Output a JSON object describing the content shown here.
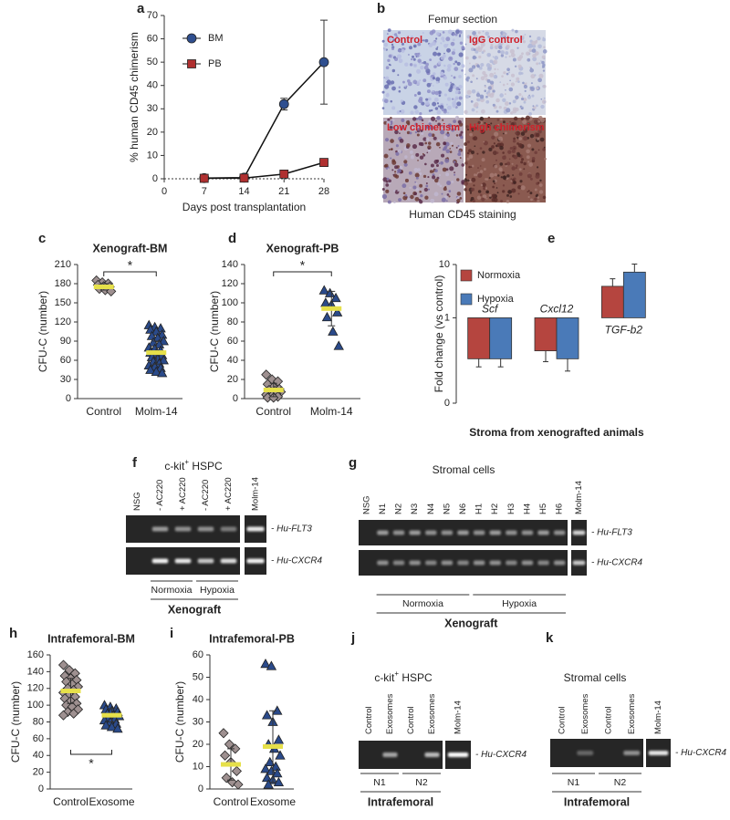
{
  "chart_data": [
    {
      "type": "line",
      "panel": "a",
      "ylabel": "% human CD45 chimerism",
      "xlabel": "Days post transplantation",
      "x": [
        7,
        14,
        21,
        28
      ],
      "xlim": [
        0,
        28
      ],
      "xticks": [
        0,
        7,
        14,
        21,
        28
      ],
      "ylim": [
        0,
        70
      ],
      "yticks": [
        0,
        10,
        20,
        30,
        40,
        50,
        60,
        70
      ],
      "series": [
        {
          "name": "BM",
          "color": "#2f4f8f",
          "marker": "circle",
          "values": [
            0.3,
            0.5,
            32,
            50
          ],
          "errors": [
            0.2,
            0.3,
            2.5,
            18
          ]
        },
        {
          "name": "PB",
          "color": "#b03030",
          "marker": "square",
          "values": [
            0.2,
            0.3,
            2,
            7
          ],
          "errors": [
            0.1,
            0.2,
            0.8,
            1.5
          ]
        }
      ]
    },
    {
      "type": "strip",
      "panel": "c",
      "title": "Xenograft-BM",
      "ylabel": "CFU-C (number)",
      "categories": [
        "Control",
        "Molm-14"
      ],
      "ylim": [
        0,
        210
      ],
      "yticks": [
        0,
        30,
        60,
        90,
        120,
        150,
        180,
        210
      ],
      "mean_color": "#e6e04a",
      "annotation": "*",
      "annotation_position": "top",
      "groups": [
        {
          "marker": "diamond",
          "color": "#9e9090",
          "values": [
            185,
            182,
            180,
            178,
            176,
            175,
            172,
            170,
            168
          ],
          "mean": 175,
          "error": 5
        },
        {
          "marker": "triangle",
          "color": "#2a4a8a",
          "values": [
            115,
            112,
            110,
            108,
            105,
            100,
            98,
            95,
            90,
            88,
            85,
            80,
            78,
            75,
            72,
            70,
            68,
            65,
            62,
            60,
            58,
            55,
            52,
            50,
            48,
            45,
            42,
            40
          ],
          "mean": 72,
          "error": 18
        }
      ]
    },
    {
      "type": "strip",
      "panel": "d",
      "title": "Xenograft-PB",
      "ylabel": "CFU-C (number)",
      "categories": [
        "Control",
        "Molm-14"
      ],
      "ylim": [
        0,
        140
      ],
      "yticks": [
        0,
        20,
        40,
        60,
        80,
        100,
        120,
        140
      ],
      "mean_color": "#e6e04a",
      "annotation": "*",
      "annotation_position": "top",
      "groups": [
        {
          "marker": "diamond",
          "color": "#9e9090",
          "values": [
            25,
            20,
            18,
            15,
            12,
            10,
            9,
            8,
            7,
            6,
            5,
            4,
            3,
            2,
            1,
            1
          ],
          "mean": 9,
          "error": 7
        },
        {
          "marker": "triangle",
          "color": "#2a4a8a",
          "values": [
            113,
            110,
            105,
            100,
            98,
            90,
            85,
            70,
            55
          ],
          "mean": 94,
          "error": 18
        }
      ]
    },
    {
      "type": "bar",
      "panel": "e",
      "ylabel": "Fold change (vs control)",
      "xlabel": "Stroma from xenografted animals",
      "log": true,
      "categories": [
        "Scf",
        "Cxcl12",
        "TGF-b2"
      ],
      "ylim": [
        0.025,
        10
      ],
      "yticks": [
        {
          "value": 0.025,
          "label": "0"
        },
        1,
        10
      ],
      "bar_base": 1,
      "series": [
        {
          "name": "Normoxia",
          "color": "#b5453f",
          "values": [
            0.17,
            0.24,
            3.9
          ],
          "errors": [
            0.05,
            0.09,
            1.5
          ]
        },
        {
          "name": "Hypoxia",
          "color": "#4a7ab8",
          "values": [
            0.17,
            0.17,
            7.2
          ],
          "errors": [
            0.05,
            0.07,
            3
          ]
        }
      ]
    },
    {
      "type": "strip",
      "panel": "h",
      "title": "Intrafemoral-BM",
      "ylabel": "CFU-C (number)",
      "categories": [
        "Control",
        "Exosome"
      ],
      "ylim": [
        0,
        160
      ],
      "yticks": [
        0,
        20,
        40,
        60,
        80,
        100,
        120,
        140,
        160
      ],
      "mean_color": "#e6e04a",
      "annotation": "*",
      "annotation_position": "bottom",
      "groups": [
        {
          "marker": "diamond",
          "color": "#9e9090",
          "values": [
            148,
            142,
            138,
            135,
            132,
            130,
            128,
            125,
            122,
            120,
            118,
            115,
            112,
            110,
            108,
            105,
            102,
            100,
            98,
            95,
            92,
            90,
            88
          ],
          "mean": 117,
          "error": 15
        },
        {
          "marker": "triangle",
          "color": "#2a4a8a",
          "values": [
            100,
            98,
            96,
            95,
            93,
            92,
            90,
            88,
            87,
            85,
            83,
            82,
            80,
            78,
            76,
            74,
            72
          ],
          "mean": 88,
          "error": 8
        }
      ]
    },
    {
      "type": "strip",
      "panel": "i",
      "title": "Intrafemoral-PB",
      "ylabel": "CFU-C (number)",
      "categories": [
        "Control",
        "Exosome"
      ],
      "ylim": [
        0,
        60
      ],
      "yticks": [
        0,
        10,
        20,
        30,
        40,
        50,
        60
      ],
      "mean_color": "#e6e04a",
      "groups": [
        {
          "marker": "diamond",
          "color": "#9e9090",
          "values": [
            25,
            20,
            18,
            15,
            12,
            8,
            5,
            3,
            2
          ],
          "mean": 11,
          "error": 7
        },
        {
          "marker": "triangle",
          "color": "#2a4a8a",
          "values": [
            56,
            55,
            35,
            33,
            30,
            22,
            20,
            18,
            15,
            12,
            10,
            9,
            8,
            7,
            5,
            4,
            3,
            2
          ],
          "mean": 19,
          "error": 16
        }
      ]
    }
  ],
  "figures": {
    "b": {
      "panel": "b",
      "title": "Femur section",
      "tiles": [
        "Control",
        "IgG control",
        "Low chimerism",
        "High chimerism"
      ],
      "caption": "Human CD45 staining"
    },
    "f": {
      "panel": "f",
      "title": {
        "text": "c-kit",
        "sup": "+",
        "rest": " HSPC"
      },
      "lanes": [
        "NSG",
        "- AC220",
        "+ AC220",
        "- AC220",
        "+ AC220",
        "Molm-14"
      ],
      "bands": [
        "- Hu-FLT3",
        "- Hu-CXCR4"
      ],
      "groups": [
        "Normoxia",
        "Hypoxia"
      ],
      "footer": "Xenograft"
    },
    "g": {
      "panel": "g",
      "title": "Stromal cells",
      "lanes": [
        "NSG",
        "N1",
        "N2",
        "N3",
        "N4",
        "N5",
        "N6",
        "H1",
        "H2",
        "H3",
        "H4",
        "H5",
        "H6",
        "Molm-14"
      ],
      "bands": [
        "- Hu-FLT3",
        "- Hu-CXCR4"
      ],
      "groups": [
        "Normoxia",
        "Hypoxia"
      ],
      "footer": "Xenograft"
    },
    "j": {
      "panel": "j",
      "title": {
        "text": "c-kit",
        "sup": "+",
        "rest": " HSPC"
      },
      "lanes": [
        "Control",
        "Exosomes",
        "Control",
        "Exosomes",
        "Molm-14"
      ],
      "bands": [
        "- Hu-CXCR4"
      ],
      "groups": [
        "N1",
        "N2"
      ],
      "footer": "Intrafemoral"
    },
    "k": {
      "panel": "k",
      "title": "Stromal cells",
      "lanes": [
        "Control",
        "Exosomes",
        "Control",
        "Exosomes",
        "Molm-14"
      ],
      "bands": [
        "- Hu-CXCR4"
      ],
      "groups": [
        "N1",
        "N2"
      ],
      "footer": "Intrafemoral"
    }
  }
}
